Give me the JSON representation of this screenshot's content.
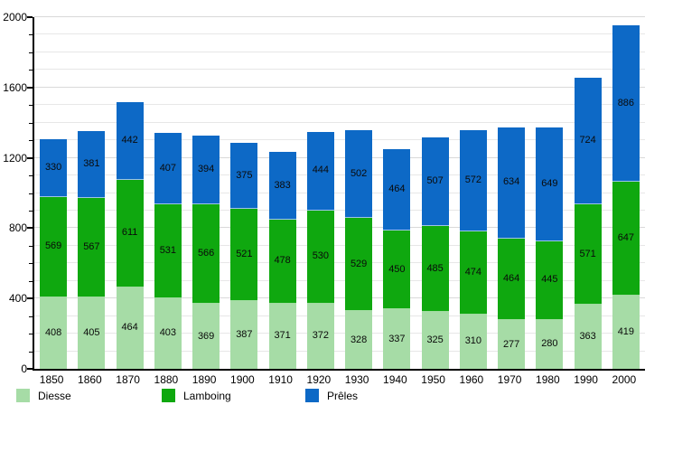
{
  "chart_data": {
    "type": "bar",
    "stacked": true,
    "title": "",
    "xlabel": "",
    "ylabel": "",
    "ylim": [
      0,
      2000
    ],
    "y_major_ticks": [
      "0",
      "400",
      "800",
      "1200",
      "1600",
      "2000"
    ],
    "y_minor_step": 100,
    "y_major_step": 400,
    "grid": true,
    "legend_position": "bottom",
    "categories": [
      "1850",
      "1860",
      "1870",
      "1880",
      "1890",
      "1900",
      "1910",
      "1920",
      "1930",
      "1940",
      "1950",
      "1960",
      "1970",
      "1980",
      "1990",
      "2000"
    ],
    "series": [
      {
        "name": "Diesse",
        "color": "#a6dca6",
        "values": [
          408,
          405,
          464,
          403,
          369,
          387,
          371,
          372,
          328,
          337,
          325,
          310,
          277,
          280,
          363,
          419
        ]
      },
      {
        "name": "Lamboing",
        "color": "#0fa80f",
        "values": [
          569,
          567,
          611,
          531,
          566,
          521,
          478,
          530,
          529,
          450,
          485,
          474,
          464,
          445,
          571,
          647
        ]
      },
      {
        "name": "Prêles",
        "color": "#0d69c6",
        "values": [
          330,
          381,
          442,
          407,
          394,
          375,
          383,
          444,
          502,
          464,
          507,
          572,
          634,
          649,
          724,
          886
        ]
      }
    ]
  },
  "colors": {
    "axis": "#000000",
    "gridline_minor": "#e7e7e7",
    "gridline_major": "#d9d9d9",
    "background": "#ffffff"
  }
}
